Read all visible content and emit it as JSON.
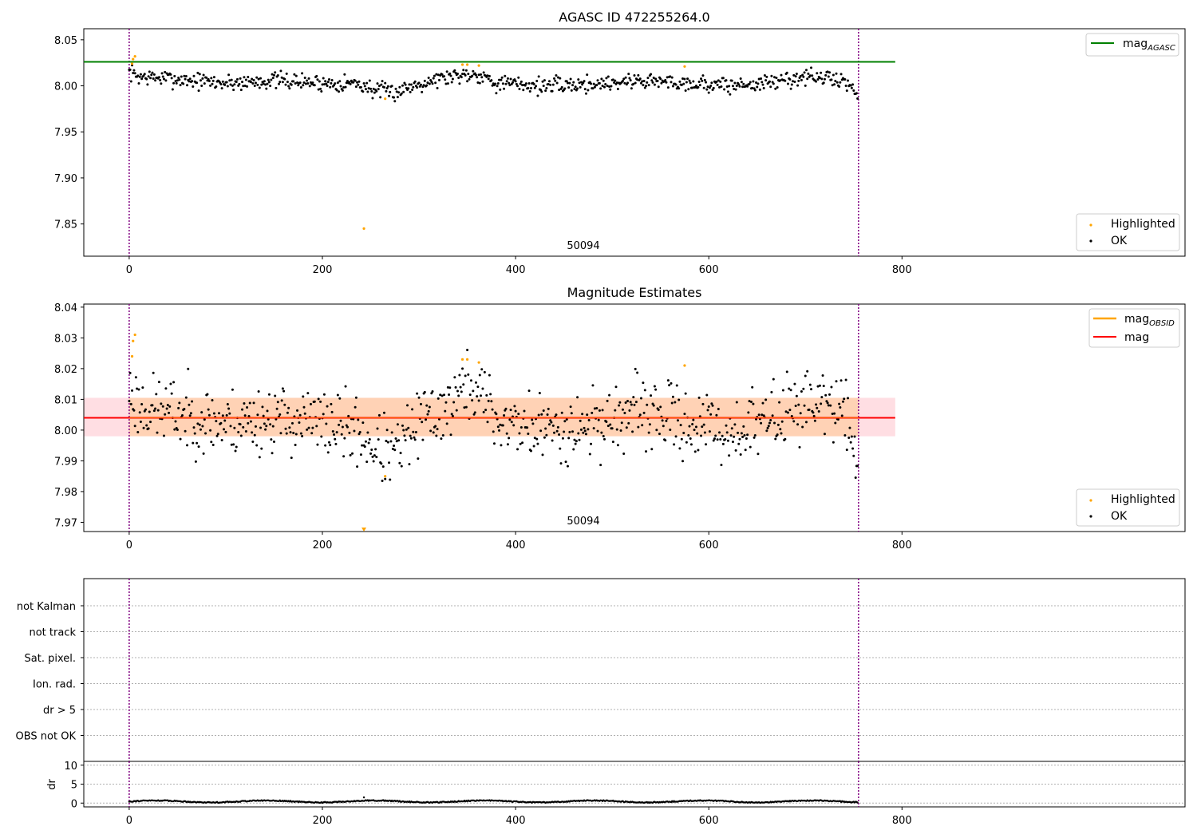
{
  "chart_data": [
    {
      "type": "scatter",
      "title": "AGASC ID 472255264.0",
      "annotation": "50094",
      "ylim": [
        7.815,
        8.062
      ],
      "xlim": [
        -47,
        1093
      ],
      "x_ticks": [
        "0",
        "200",
        "400",
        "600",
        "800"
      ],
      "y_ticks": [
        "8.05",
        "8.00",
        "7.95",
        "7.90",
        "7.85"
      ],
      "vlines": [
        0,
        755
      ],
      "hline": {
        "name": "mag",
        "subscript": "AGASC",
        "value": 8.026
      },
      "legend_lines": [
        {
          "label": "mag",
          "subscript": "AGASC"
        }
      ],
      "legend_points": [
        {
          "label": "Highlighted"
        },
        {
          "label": "OK"
        }
      ],
      "baseline": [
        [
          0,
          8.015
        ],
        [
          10,
          8.01
        ],
        [
          40,
          8.008
        ],
        [
          100,
          8.003
        ],
        [
          150,
          8.006
        ],
        [
          200,
          8.003
        ],
        [
          235,
          8.003
        ],
        [
          255,
          7.995
        ],
        [
          275,
          7.993
        ],
        [
          300,
          8.003
        ],
        [
          330,
          8.01
        ],
        [
          350,
          8.013
        ],
        [
          365,
          8.012
        ],
        [
          380,
          8.003
        ],
        [
          430,
          8.0
        ],
        [
          480,
          8.002
        ],
        [
          530,
          8.006
        ],
        [
          580,
          8.003
        ],
        [
          620,
          8.0
        ],
        [
          660,
          8.003
        ],
        [
          700,
          8.01
        ],
        [
          740,
          8.006
        ],
        [
          750,
          7.995
        ],
        [
          755,
          7.992
        ]
      ],
      "highlighted": [
        [
          3,
          8.024
        ],
        [
          4,
          8.029
        ],
        [
          6,
          8.032
        ],
        [
          265,
          7.986
        ],
        [
          243,
          7.845
        ],
        [
          345,
          8.023
        ],
        [
          350,
          8.023
        ],
        [
          362,
          8.022
        ],
        [
          575,
          8.021
        ]
      ]
    },
    {
      "type": "scatter",
      "title": "Magnitude Estimates",
      "annotation": "50094",
      "ylim": [
        7.967,
        8.041
      ],
      "xlim": [
        -47,
        1093
      ],
      "x_ticks": [
        "0",
        "200",
        "400",
        "600",
        "800"
      ],
      "y_ticks": [
        "8.04",
        "8.03",
        "8.02",
        "8.01",
        "8.00",
        "7.99",
        "7.98",
        "7.97"
      ],
      "vlines": [
        0,
        755
      ],
      "mag_line": 8.004,
      "band": [
        7.998,
        8.0105
      ],
      "legend_lines": [
        {
          "label": "mag",
          "subscript": "OBSID"
        },
        {
          "label": "mag",
          "subscript": ""
        }
      ],
      "legend_points": [
        {
          "label": "Highlighted"
        },
        {
          "label": "OK"
        }
      ],
      "colors": {
        "obsid": "#ffa500",
        "mag": "#ff0000",
        "band": "#ffb6c1"
      },
      "baseline": [
        [
          0,
          8.013
        ],
        [
          10,
          8.008
        ],
        [
          40,
          8.006
        ],
        [
          100,
          8.002
        ],
        [
          150,
          8.004
        ],
        [
          200,
          8.002
        ],
        [
          235,
          8.0
        ],
        [
          255,
          7.994
        ],
        [
          275,
          7.992
        ],
        [
          300,
          8.002
        ],
        [
          330,
          8.008
        ],
        [
          350,
          8.014
        ],
        [
          365,
          8.012
        ],
        [
          380,
          8.003
        ],
        [
          430,
          8.0
        ],
        [
          480,
          8.002
        ],
        [
          530,
          8.006
        ],
        [
          580,
          8.002
        ],
        [
          620,
          7.999
        ],
        [
          660,
          8.003
        ],
        [
          700,
          8.01
        ],
        [
          740,
          8.006
        ],
        [
          750,
          7.995
        ],
        [
          755,
          7.991
        ]
      ],
      "highlighted": [
        [
          3,
          8.024
        ],
        [
          4,
          8.029
        ],
        [
          6,
          8.031
        ],
        [
          265,
          7.985
        ],
        [
          345,
          8.023
        ],
        [
          350,
          8.023
        ],
        [
          362,
          8.022
        ],
        [
          575,
          8.021
        ]
      ],
      "offscale_marker_x": 243
    },
    {
      "type": "table",
      "categories": [
        "not Kalman",
        "not track",
        "Sat. pixel.",
        "Ion. rad.",
        "dr > 5",
        "OBS not OK"
      ],
      "xlim": [
        -47,
        1093
      ],
      "vlines": [
        0,
        755
      ]
    },
    {
      "type": "scatter",
      "ylabel": "dr",
      "ylim": [
        -1,
        11
      ],
      "y_ticks": [
        "10",
        "5",
        "0"
      ],
      "x_ticks": [
        "0",
        "200",
        "400",
        "600",
        "800"
      ],
      "xlim": [
        -47,
        1093
      ],
      "vlines": [
        0,
        755
      ],
      "outlier": [
        243,
        1.5
      ],
      "n_points": 755
    }
  ],
  "colors": {
    "ok_points": "#000000",
    "highlighted_points": "#ffa500",
    "agasc_line": "#008000",
    "vlines": "#800080",
    "grid": "#b0b0b0"
  }
}
